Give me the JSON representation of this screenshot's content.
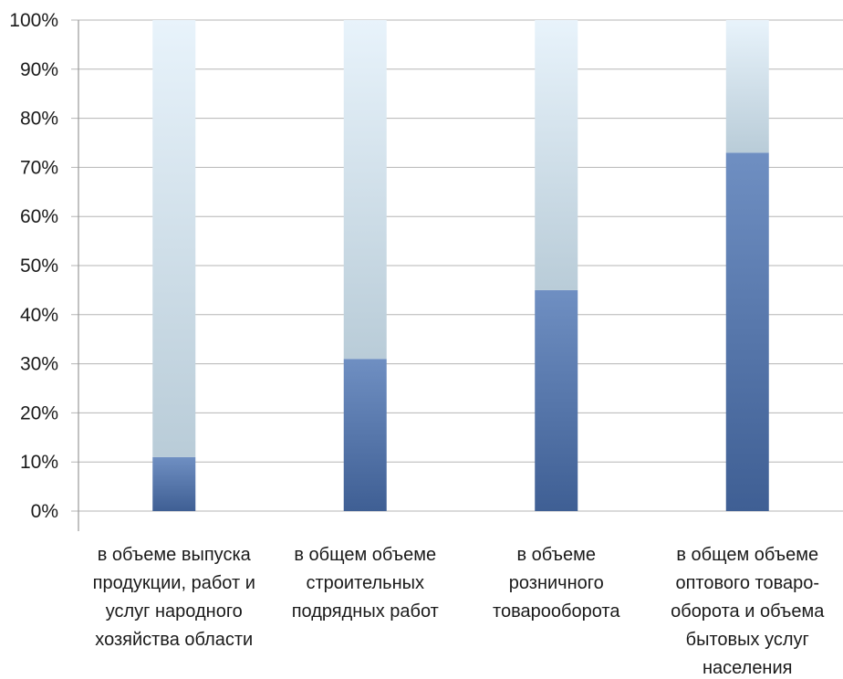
{
  "chart_data": {
    "type": "bar",
    "stacked_percent": true,
    "title": "",
    "xlabel": "",
    "ylabel": "",
    "ylim": [
      0,
      100
    ],
    "y_ticks": [
      "0%",
      "10%",
      "20%",
      "30%",
      "40%",
      "50%",
      "60%",
      "70%",
      "80%",
      "90%",
      "100%"
    ],
    "grid": true,
    "categories": [
      [
        "в объеме выпуска",
        "продукции, работ и",
        "услуг народного",
        "хозяйства области"
      ],
      [
        "в общем объеме",
        "строительных",
        "подрядных работ"
      ],
      [
        "в объеме",
        "розничного",
        "товарооборота"
      ],
      [
        "в общем объеме",
        "оптового товаро-",
        "оборота и объема",
        "бытовых услуг",
        "населения"
      ]
    ],
    "series": [
      {
        "values": [
          11,
          31,
          45,
          73
        ],
        "color": "#4a6fa8"
      },
      {
        "values": [
          89,
          69,
          55,
          27
        ],
        "color": "#c9dcea"
      }
    ]
  }
}
